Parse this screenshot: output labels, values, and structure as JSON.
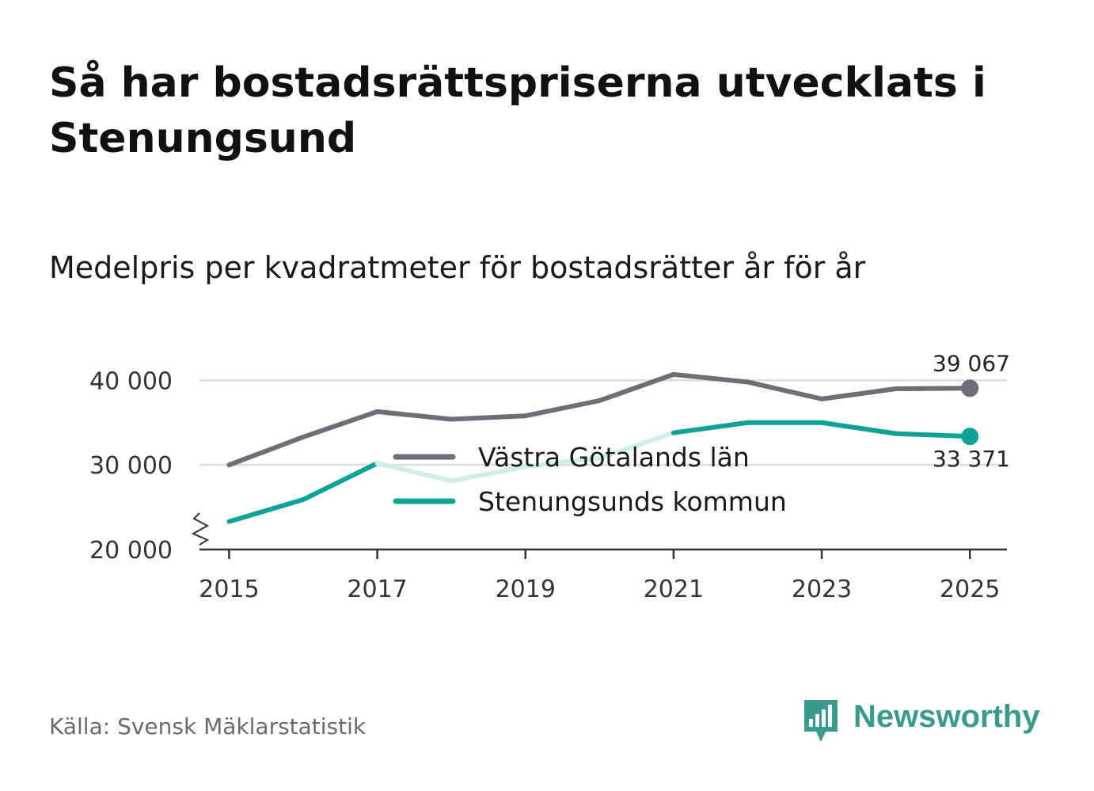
{
  "title": "Så har bostadsrättspriserna utvecklats i Stenungsund",
  "subtitle": "Medelpris per kvadratmeter för bostadsrätter år för år",
  "source": "Källa: Svensk Mäklarstatistik",
  "brand": {
    "name": "Newsworthy",
    "color": "#3a9a8c",
    "icon": "newsworthy-logo-icon"
  },
  "chart_data": {
    "type": "line",
    "title": "Så har bostadsrättspriserna utvecklats i Stenungsund",
    "subtitle": "Medelpris per kvadratmeter för bostadsrätter år för år",
    "xlabel": "",
    "ylabel": "",
    "x": [
      2015,
      2016,
      2017,
      2018,
      2019,
      2020,
      2021,
      2022,
      2023,
      2024,
      2025
    ],
    "x_ticks": [
      "2015",
      "2017",
      "2019",
      "2021",
      "2023",
      "2025"
    ],
    "xlim": [
      2014.6,
      2025.5
    ],
    "ylim": [
      20000,
      40500
    ],
    "y_ticks": [
      {
        "value": 20000,
        "label": "20 000"
      },
      {
        "value": 30000,
        "label": "30 000"
      },
      {
        "value": 40000,
        "label": "40 000"
      }
    ],
    "y_axis_break": true,
    "grid": true,
    "legend_position": "center",
    "series": [
      {
        "name": "Västra Götalands län",
        "color": "#6e6e78",
        "values": [
          30000,
          33300,
          36300,
          35400,
          35800,
          37600,
          40700,
          39800,
          37800,
          39000,
          39067
        ],
        "end_label": "39 067"
      },
      {
        "name": "Stenungsunds kommun",
        "color": "#0fa398",
        "faded_color": "#cdeeea",
        "values": [
          23300,
          25900,
          30200,
          28100,
          29800,
          30800,
          33800,
          35000,
          35000,
          33700,
          33371
        ],
        "end_label": "33 371"
      }
    ]
  }
}
